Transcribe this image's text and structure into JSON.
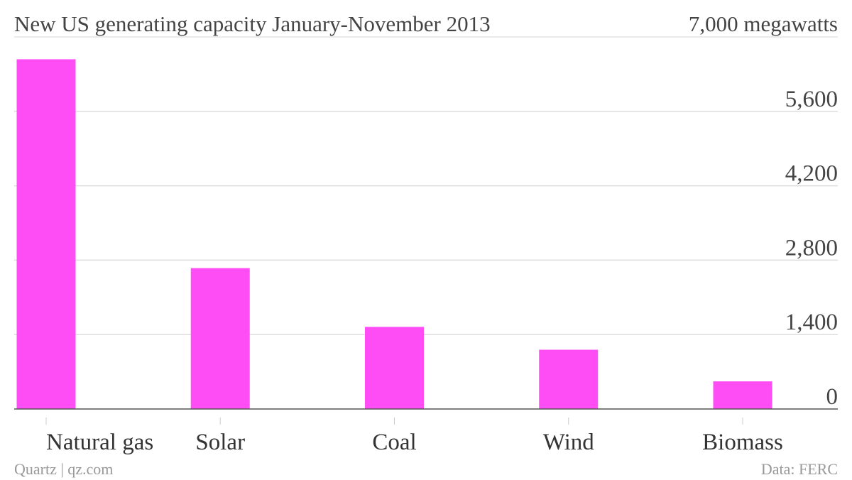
{
  "header": {
    "title": "New US generating capacity January-November 2013",
    "unit_label": "7,000 megawatts"
  },
  "footer": {
    "credit": "Quartz | qz.com",
    "source": "Data: FERC"
  },
  "colors": {
    "bar": "#ff4df5",
    "text": "#444444",
    "footer": "#999999",
    "grid": "#dddddd"
  },
  "chart_data": {
    "type": "bar",
    "title": "New US generating capacity January-November 2013",
    "xlabel": "",
    "ylabel": "",
    "categories": [
      "Natural gas",
      "Solar",
      "Coal",
      "Wind",
      "Biomass"
    ],
    "values": [
      6580,
      2650,
      1545,
      1115,
      520
    ],
    "ylim": [
      0,
      7000
    ],
    "yticks": [
      0,
      1400,
      2800,
      4200,
      5600
    ],
    "ytick_labels": [
      "0",
      "1,400",
      "2,800",
      "4,200",
      "5,600"
    ],
    "grid": true,
    "y_axis_side": "right",
    "legend": "none"
  }
}
